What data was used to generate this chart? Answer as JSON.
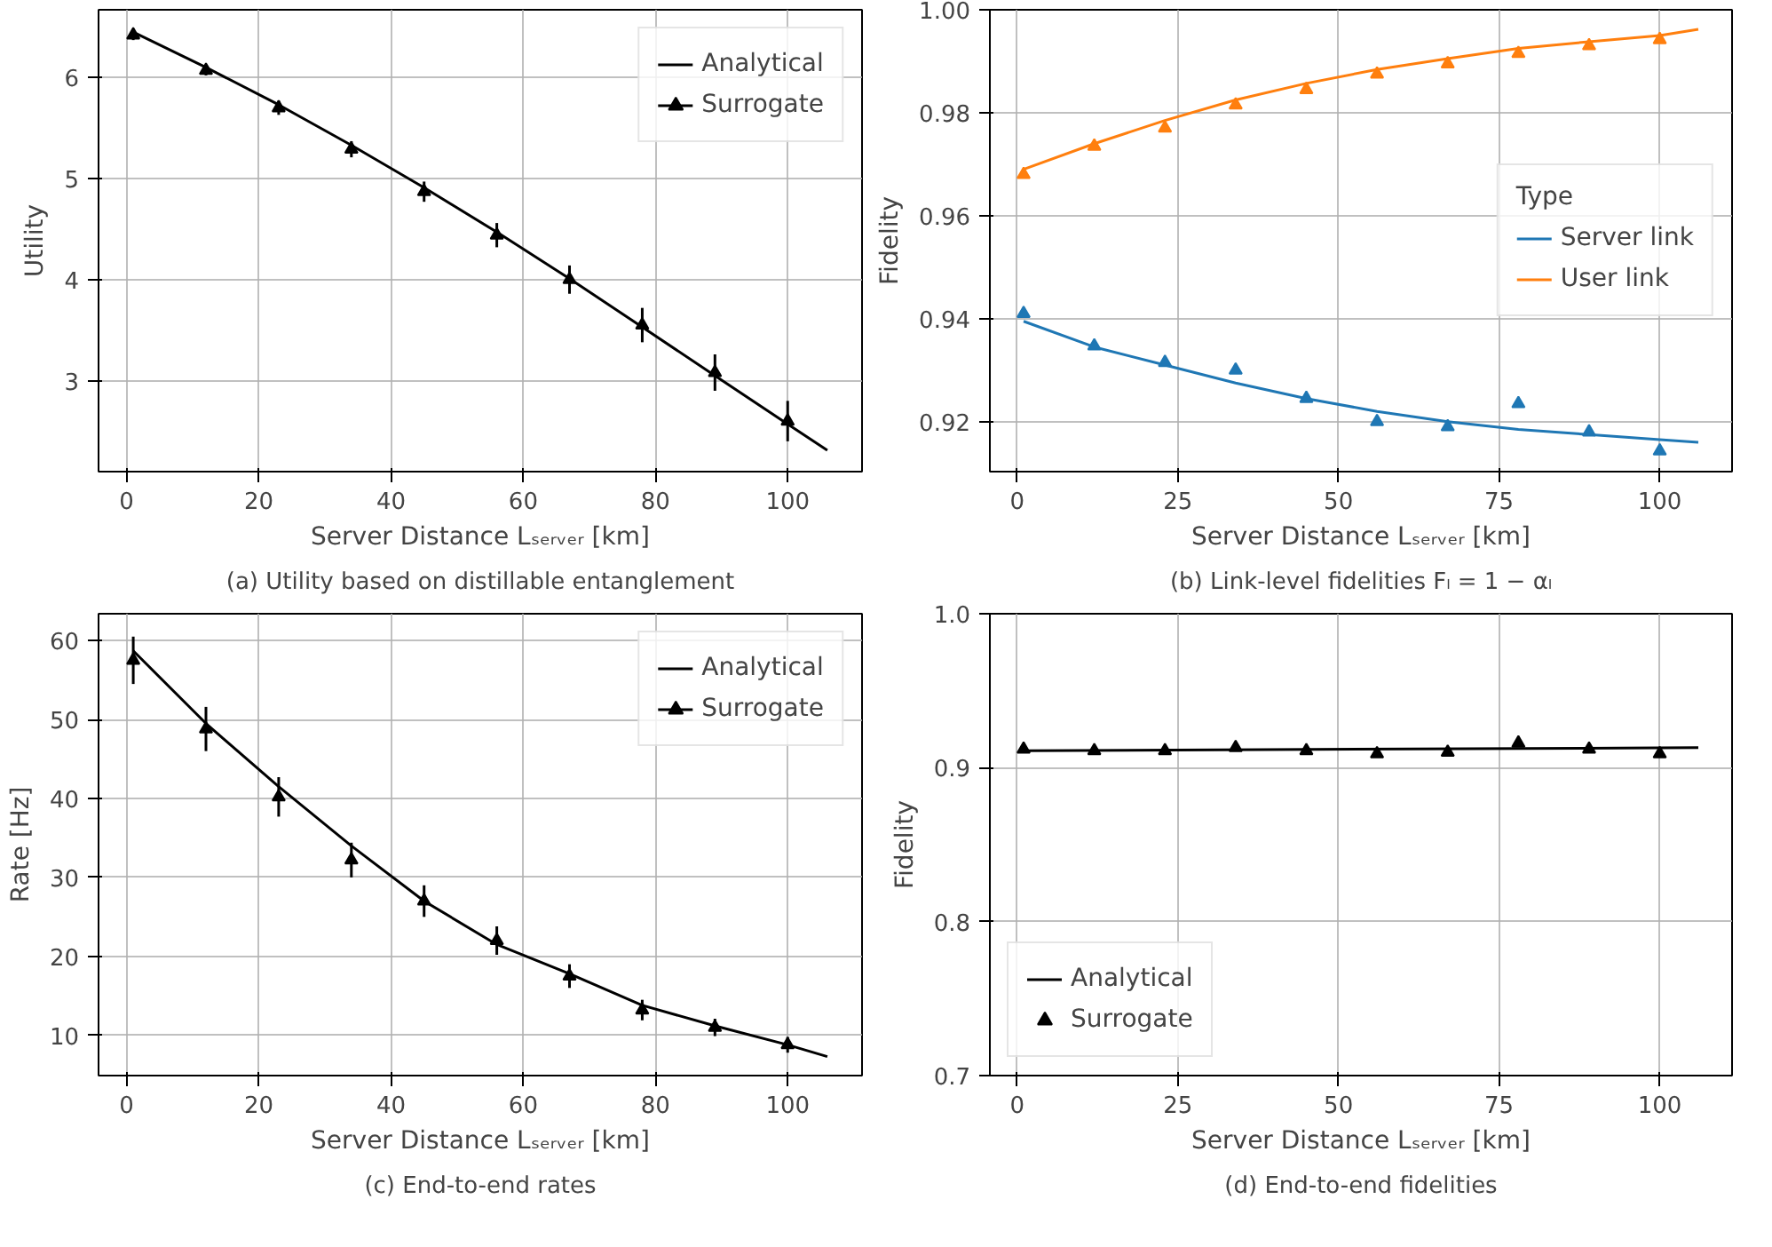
{
  "chart_data": [
    {
      "type": "line",
      "title": "(a) Utility based on distillable entanglement",
      "xlabel": "Server Distance Lₛₑᵣᵥₑᵣ [km]",
      "ylabel": "Utility",
      "xlim": [
        -4.25,
        111.25
      ],
      "xticks": [
        0,
        20,
        40,
        60,
        80,
        100
      ],
      "ylim": [
        2.1,
        6.67
      ],
      "yticks": [
        3,
        4,
        5,
        6
      ],
      "grid": true,
      "legend": "top right",
      "series": [
        {
          "name": "Analytical",
          "color": "#000000",
          "x": [
            1,
            12,
            23,
            34,
            45,
            56,
            67,
            78,
            89,
            100,
            106
          ],
          "values": [
            6.45,
            6.1,
            5.73,
            5.33,
            4.91,
            4.47,
            4.01,
            3.53,
            3.05,
            2.57,
            2.31
          ]
        },
        {
          "name": "Surrogate",
          "type": "scatter",
          "marker": "triangle",
          "color": "#000000",
          "x": [
            1,
            12,
            23,
            34,
            45,
            56,
            67,
            78,
            89,
            100
          ],
          "values": [
            6.42,
            6.07,
            5.7,
            5.29,
            4.87,
            4.44,
            4.0,
            3.55,
            3.08,
            2.6
          ],
          "errors": [
            0.05,
            0.05,
            0.07,
            0.08,
            0.1,
            0.12,
            0.14,
            0.17,
            0.18,
            0.2
          ]
        }
      ]
    },
    {
      "type": "line",
      "title": "(b) Link-level fidelities Fₗ = 1 − αₗ",
      "xlabel": "Server Distance Lₛₑᵣᵥₑᵣ [km]",
      "ylabel": "Fidelity",
      "xlim": [
        -4.25,
        111.25
      ],
      "xticks": [
        0,
        25,
        50,
        75,
        100
      ],
      "ylim": [
        0.9103,
        1.0
      ],
      "yticks": [
        {
          "value": 0.92,
          "label": "0.92"
        },
        {
          "value": 0.94,
          "label": "0.94"
        },
        {
          "value": 0.96,
          "label": "0.96"
        },
        {
          "value": 0.98,
          "label": "0.98"
        },
        {
          "value": 1.0,
          "label": "1.00"
        }
      ],
      "grid": true,
      "legend": "right",
      "legend_title": "Type",
      "series": [
        {
          "name": "Server link",
          "color": "#1f77b4",
          "x": [
            1,
            12,
            23,
            34,
            45,
            56,
            67,
            78,
            89,
            100,
            106
          ],
          "values": [
            0.9395,
            0.9345,
            0.931,
            0.9275,
            0.9245,
            0.922,
            0.92,
            0.9185,
            0.9175,
            0.9165,
            0.916
          ]
        },
        {
          "name": "User link",
          "color": "#ff7f0e",
          "x": [
            1,
            12,
            23,
            34,
            45,
            56,
            67,
            78,
            89,
            100,
            106
          ],
          "values": [
            0.969,
            0.974,
            0.9785,
            0.9825,
            0.9857,
            0.9884,
            0.9905,
            0.9925,
            0.9938,
            0.995,
            0.9962
          ]
        },
        {
          "type": "scatter",
          "marker": "triangle",
          "color": "#1f77b4",
          "x": [
            1,
            12,
            23,
            34,
            45,
            56,
            67,
            78,
            89,
            100
          ],
          "values": [
            0.941,
            0.9347,
            0.9315,
            0.93,
            0.9245,
            0.92,
            0.919,
            0.9235,
            0.918,
            0.9143
          ]
        },
        {
          "type": "scatter",
          "marker": "triangle",
          "color": "#ff7f0e",
          "x": [
            1,
            12,
            23,
            34,
            45,
            56,
            67,
            78,
            89,
            100
          ],
          "values": [
            0.968,
            0.9735,
            0.977,
            0.9815,
            0.9845,
            0.9875,
            0.9895,
            0.9915,
            0.993,
            0.9942
          ]
        }
      ]
    },
    {
      "type": "line",
      "title": "(c) End-to-end rates",
      "xlabel": "Server Distance Lₛₑᵣᵥₑᵣ [km]",
      "ylabel": "Rate [Hz]",
      "xlim": [
        -4.25,
        111.25
      ],
      "xticks": [
        0,
        20,
        40,
        60,
        80,
        100
      ],
      "ylim": [
        4.9,
        63.4
      ],
      "yticks": [
        10,
        20,
        30,
        40,
        50,
        60
      ],
      "grid": true,
      "legend": "top right",
      "series": [
        {
          "name": "Analytical",
          "color": "#000000",
          "x": [
            1,
            12,
            23,
            34,
            45,
            56,
            67,
            78,
            89,
            100,
            106
          ],
          "values": [
            58.7,
            49.5,
            41.5,
            34,
            27,
            21.5,
            17.8,
            13.8,
            11.2,
            8.8,
            7.3
          ]
        },
        {
          "name": "Surrogate",
          "type": "scatter",
          "marker": "triangle",
          "color": "#000000",
          "x": [
            1,
            12,
            23,
            34,
            45,
            56,
            67,
            78,
            89,
            100
          ],
          "values": [
            57.5,
            48.8,
            40.2,
            32.2,
            27.0,
            22.0,
            17.5,
            13.2,
            11.0,
            8.8
          ],
          "errors": [
            3.0,
            2.8,
            2.5,
            2.2,
            2.0,
            1.8,
            1.5,
            1.3,
            1.1,
            1.0
          ]
        }
      ]
    },
    {
      "type": "line",
      "title": "(d) End-to-end fidelities",
      "xlabel": "Server Distance Lₛₑᵣᵥₑᵣ [km]",
      "ylabel": "Fidelity",
      "xlim": [
        -4.25,
        111.25
      ],
      "xticks": [
        0,
        25,
        50,
        75,
        100
      ],
      "ylim": [
        0.7,
        1.0
      ],
      "yticks": [
        {
          "value": 0.7,
          "label": "0.7"
        },
        {
          "value": 0.8,
          "label": "0.8"
        },
        {
          "value": 0.9,
          "label": "0.9"
        },
        {
          "value": 1.0,
          "label": "1.0"
        }
      ],
      "grid": true,
      "legend": "bottom left",
      "series": [
        {
          "name": "Analytical",
          "color": "#000000",
          "x": [
            1,
            106
          ],
          "values": [
            0.911,
            0.913
          ]
        },
        {
          "name": "Surrogate",
          "type": "scatter",
          "marker": "triangle",
          "color": "#000000",
          "x": [
            1,
            12,
            23,
            34,
            45,
            56,
            67,
            78,
            89,
            100
          ],
          "values": [
            0.912,
            0.911,
            0.911,
            0.913,
            0.911,
            0.909,
            0.91,
            0.916,
            0.912,
            0.909
          ]
        }
      ]
    }
  ]
}
